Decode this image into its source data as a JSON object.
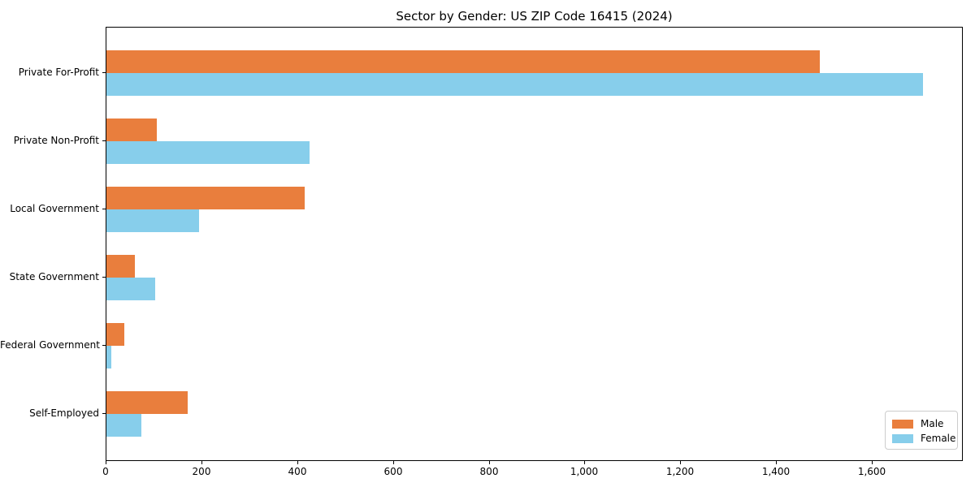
{
  "chart_data": {
    "type": "bar",
    "orientation": "horizontal",
    "title": "Sector by Gender: US ZIP Code 16415 (2024)",
    "categories": [
      "Private For-Profit",
      "Private Non-Profit",
      "Local Government",
      "State Government",
      "Federal Government",
      "Self-Employed"
    ],
    "series": [
      {
        "name": "Male",
        "color": "#e97e3d",
        "values": [
          1490,
          105,
          414,
          59,
          37,
          170
        ]
      },
      {
        "name": "Female",
        "color": "#87ceeb",
        "values": [
          1706,
          425,
          194,
          102,
          10,
          73
        ]
      }
    ],
    "xlabel": "",
    "ylabel": "",
    "xlim": [
      0,
      1790
    ],
    "xticks": [
      0,
      200,
      400,
      600,
      800,
      1000,
      1200,
      1400,
      1600
    ],
    "xtick_labels": [
      "0",
      "200",
      "400",
      "600",
      "800",
      "1,000",
      "1,200",
      "1,400",
      "1,600"
    ],
    "grid": false,
    "legend_position": "lower right",
    "legend_title": ""
  }
}
